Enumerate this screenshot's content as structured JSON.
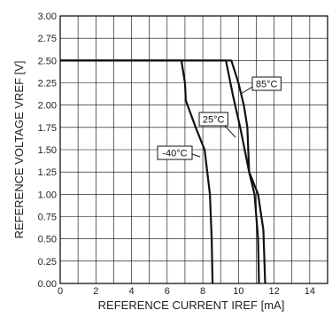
{
  "chart_data": {
    "type": "line",
    "title": "",
    "xlabel": "REFERENCE CURRENT IREF [mA]",
    "ylabel": "REFERENCE VOLTAGE VREF [V]",
    "xlim": [
      0,
      15
    ],
    "ylim": [
      0,
      3.0
    ],
    "x_ticks": [
      0,
      2,
      4,
      6,
      8,
      10,
      12,
      14
    ],
    "x_tick_labels": [
      "0",
      "2",
      "4",
      "6",
      "8",
      "10",
      "12",
      "14"
    ],
    "y_ticks": [
      0,
      0.25,
      0.5,
      0.75,
      1.0,
      1.25,
      1.5,
      1.75,
      2.0,
      2.25,
      2.5,
      2.75,
      3.0
    ],
    "y_tick_labels": [
      "0.00",
      "0.25",
      "0.50",
      "0.75",
      "1.00",
      "1.25",
      "1.50",
      "1.75",
      "2.00",
      "2.25",
      "2.50",
      "2.75",
      "3.00"
    ],
    "grid": true,
    "grid_x_step": 1,
    "grid_y_step": 0.25,
    "series": [
      {
        "name": "-40°C",
        "points": [
          [
            0,
            2.5
          ],
          [
            6.8,
            2.5
          ],
          [
            7.0,
            2.25
          ],
          [
            7.05,
            2.05
          ],
          [
            7.6,
            1.75
          ],
          [
            8.1,
            1.5
          ],
          [
            8.4,
            1.0
          ],
          [
            8.5,
            0.5
          ],
          [
            8.55,
            0.0
          ]
        ]
      },
      {
        "name": "25°C",
        "points": [
          [
            0,
            2.5
          ],
          [
            9.3,
            2.5
          ],
          [
            9.7,
            2.1
          ],
          [
            10.1,
            1.75
          ],
          [
            10.6,
            1.25
          ],
          [
            10.9,
            1.0
          ],
          [
            11.1,
            0.5
          ],
          [
            11.15,
            0.0
          ]
        ]
      },
      {
        "name": "85°C",
        "points": [
          [
            0,
            2.5
          ],
          [
            9.6,
            2.5
          ],
          [
            10.0,
            2.25
          ],
          [
            10.3,
            2.0
          ],
          [
            10.5,
            1.75
          ],
          [
            10.6,
            1.25
          ],
          [
            11.1,
            1.0
          ],
          [
            11.4,
            0.6
          ],
          [
            11.5,
            0.0
          ]
        ]
      }
    ],
    "annotations": [
      {
        "text": "85°C",
        "series": "85°C"
      },
      {
        "text": "25°C",
        "series": "25°C"
      },
      {
        "text": "-40°C",
        "series": "-40°C"
      }
    ]
  }
}
